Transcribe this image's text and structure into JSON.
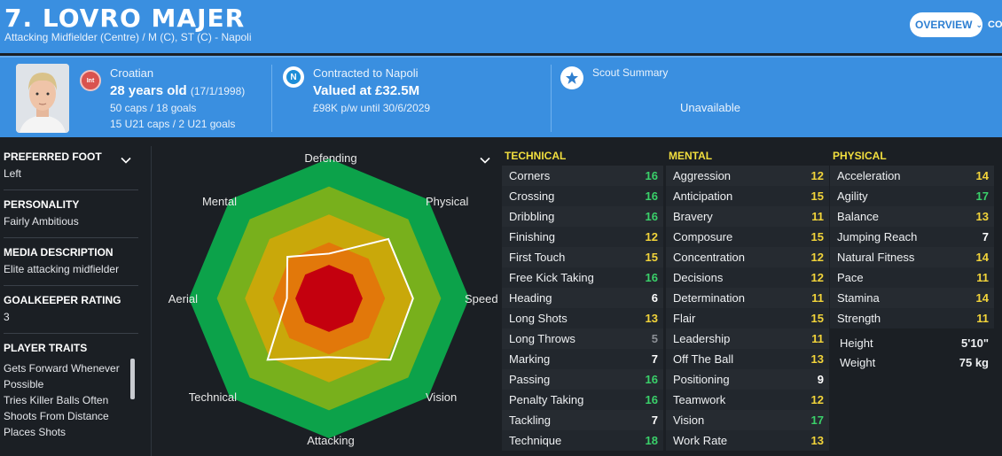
{
  "header": {
    "player_name": "7. LOVRO MAJER",
    "role": "Attacking Midfielder (Centre) / M (C), ST (C) - Napoli",
    "overview_label": "OVERVIEW",
    "cut_tab": "CO"
  },
  "info": {
    "int_badge": "Int",
    "nationality": "Croatian",
    "age": "28 years old",
    "dob": "(17/1/1998)",
    "caps": "50 caps / 18 goals",
    "u21": "15 U21 caps / 2 U21 goals",
    "contract": "Contracted to Napoli",
    "value": "Valued at £32.5M",
    "wage": "£98K p/w until 30/6/2029",
    "scout_title": "Scout Summary",
    "scout_value": "Unavailable"
  },
  "left": {
    "preferred_foot_title": "PREFERRED FOOT",
    "preferred_foot": "Left",
    "personality_title": "PERSONALITY",
    "personality": "Fairly Ambitious",
    "media_title": "MEDIA DESCRIPTION",
    "media": "Elite attacking midfielder",
    "gk_title": "GOALKEEPER RATING",
    "gk_rating": "3",
    "traits_title": "PLAYER TRAITS",
    "traits": [
      "Gets Forward Whenever Possible",
      "Tries Killer Balls Often",
      "Shoots From Distance",
      "Places Shots"
    ]
  },
  "radar": {
    "labels": [
      "Defending",
      "Physical",
      "Speed",
      "Vision",
      "Attacking",
      "Technical",
      "Aerial",
      "Mental"
    ],
    "values": [
      0.32,
      0.6,
      0.6,
      0.62,
      0.42,
      0.62,
      0.3,
      0.42
    ],
    "ring_colors": [
      "#0ca24a",
      "#78b01c",
      "#c9a80a",
      "#e2780a",
      "#c4000e"
    ]
  },
  "attributes": {
    "technical": {
      "title": "TECHNICAL",
      "rows": [
        {
          "name": "Corners",
          "value": "16"
        },
        {
          "name": "Crossing",
          "value": "16"
        },
        {
          "name": "Dribbling",
          "value": "16"
        },
        {
          "name": "Finishing",
          "value": "12"
        },
        {
          "name": "First Touch",
          "value": "15"
        },
        {
          "name": "Free Kick Taking",
          "value": "16"
        },
        {
          "name": "Heading",
          "value": "6"
        },
        {
          "name": "Long Shots",
          "value": "13"
        },
        {
          "name": "Long Throws",
          "value": "5"
        },
        {
          "name": "Marking",
          "value": "7"
        },
        {
          "name": "Passing",
          "value": "16"
        },
        {
          "name": "Penalty Taking",
          "value": "16"
        },
        {
          "name": "Tackling",
          "value": "7"
        },
        {
          "name": "Technique",
          "value": "18"
        }
      ]
    },
    "mental": {
      "title": "MENTAL",
      "rows": [
        {
          "name": "Aggression",
          "value": "12"
        },
        {
          "name": "Anticipation",
          "value": "15"
        },
        {
          "name": "Bravery",
          "value": "11"
        },
        {
          "name": "Composure",
          "value": "15"
        },
        {
          "name": "Concentration",
          "value": "12"
        },
        {
          "name": "Decisions",
          "value": "12"
        },
        {
          "name": "Determination",
          "value": "11"
        },
        {
          "name": "Flair",
          "value": "15"
        },
        {
          "name": "Leadership",
          "value": "11"
        },
        {
          "name": "Off The Ball",
          "value": "13"
        },
        {
          "name": "Positioning",
          "value": "9"
        },
        {
          "name": "Teamwork",
          "value": "12"
        },
        {
          "name": "Vision",
          "value": "17"
        },
        {
          "name": "Work Rate",
          "value": "13"
        }
      ]
    },
    "physical": {
      "title": "PHYSICAL",
      "rows": [
        {
          "name": "Acceleration",
          "value": "14"
        },
        {
          "name": "Agility",
          "value": "17"
        },
        {
          "name": "Balance",
          "value": "13"
        },
        {
          "name": "Jumping Reach",
          "value": "7"
        },
        {
          "name": "Natural Fitness",
          "value": "14"
        },
        {
          "name": "Pace",
          "value": "11"
        },
        {
          "name": "Stamina",
          "value": "14"
        },
        {
          "name": "Strength",
          "value": "11"
        }
      ],
      "height_label": "Height",
      "height": "5'10\"",
      "weight_label": "Weight",
      "weight": "75 kg"
    }
  }
}
